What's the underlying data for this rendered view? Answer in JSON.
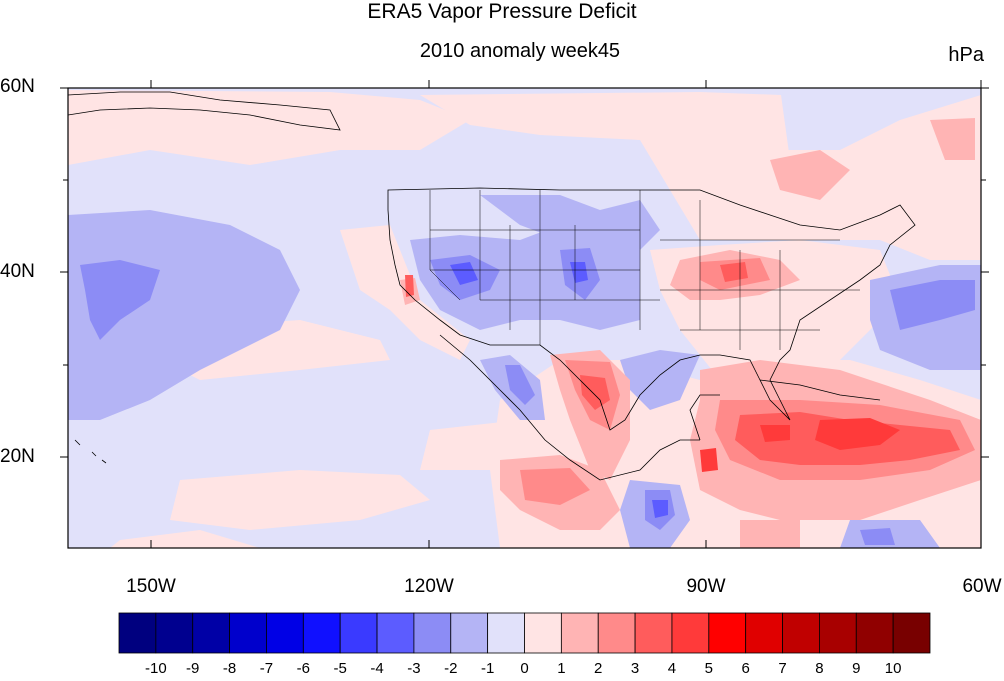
{
  "title": "ERA5 Vapor Pressure Deficit",
  "subtitle": "2010 anomaly week45",
  "units": "hPa",
  "axes": {
    "lat_ticks": [
      "60N",
      "40N",
      "20N"
    ],
    "lon_ticks": [
      "150W",
      "120W",
      "90W",
      "60W"
    ],
    "lat_range": [
      10,
      60
    ],
    "lon_range": [
      -159,
      -60
    ]
  },
  "colorbar": {
    "levels": [
      "-10",
      "-9",
      "-8",
      "-7",
      "-6",
      "-5",
      "-4",
      "-3",
      "-2",
      "-1",
      "0",
      "1",
      "2",
      "3",
      "4",
      "5",
      "6",
      "7",
      "8",
      "9",
      "10"
    ],
    "colors": [
      "#00007f",
      "#00008f",
      "#0000a6",
      "#0000cc",
      "#0000e6",
      "#1010ff",
      "#3a3aff",
      "#5c5cff",
      "#8c8cf5",
      "#b4b4f5",
      "#e1e1fa",
      "#ffe4e4",
      "#ffb4b4",
      "#ff8a8a",
      "#ff5c5c",
      "#ff3a3a",
      "#ff0000",
      "#e00000",
      "#c00000",
      "#a80000",
      "#900000",
      "#780000"
    ]
  },
  "legend_icon": "colorbar-legend"
}
